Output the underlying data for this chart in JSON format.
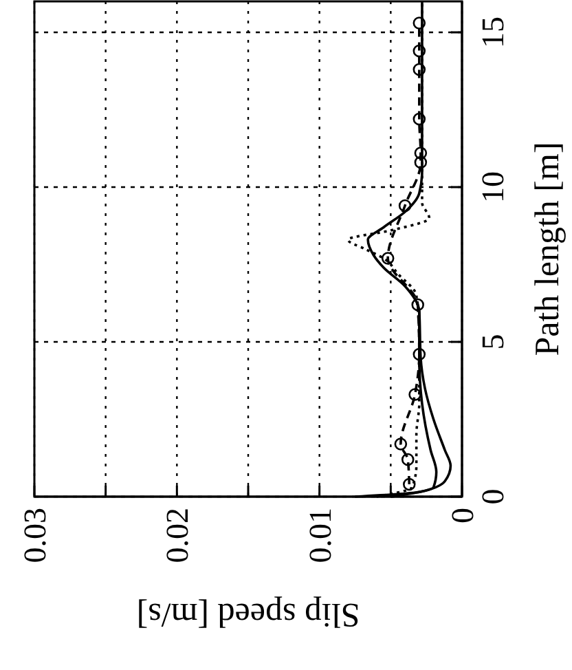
{
  "chart_data": {
    "type": "line",
    "xlabel": "Slip speed [m/s]",
    "ylabel": "Path length [m]",
    "xlim": [
      0.03,
      0
    ],
    "xticks": [
      0.03,
      {
        "value": 0.025,
        "label": null
      },
      0.02,
      {
        "value": 0.015,
        "label": null
      },
      0.01,
      {
        "value": 0.005,
        "label": null
      },
      0
    ],
    "ylim": [
      0,
      16
    ],
    "yticks": [
      0,
      5,
      10,
      15
    ],
    "grid": true,
    "series": [
      {
        "color": "#000000",
        "line_style": "solid",
        "marker": "none",
        "x": [
          0.0075,
          0.003,
          0.0012,
          0.0008,
          0.0012,
          0.002,
          0.0026,
          0.0029,
          0.003,
          0.004,
          0.0055,
          0.0062,
          0.0066,
          0.0055,
          0.004,
          0.003,
          0.0028,
          0.0028
        ],
        "values": [
          0,
          0.15,
          0.5,
          1.0,
          1.5,
          2.5,
          3.5,
          4.5,
          6,
          6.8,
          7.4,
          7.8,
          8.3,
          8.7,
          9.2,
          9.8,
          10.5,
          16
        ]
      },
      {
        "color": "#000000",
        "line_style": "solid",
        "marker": "none",
        "x": [
          0.005,
          0.002,
          0.0018,
          0.0022,
          0.0028,
          0.003,
          0.003
        ],
        "values": [
          0,
          0.3,
          0.8,
          1.5,
          3,
          4.5,
          6
        ]
      },
      {
        "color": "#000000",
        "line_style": "dotted",
        "marker": "none",
        "x": [
          0.006,
          0.0035,
          0.0032,
          0.0032,
          0.003,
          0.003,
          0.0032,
          0.0045,
          0.0055,
          0.0068,
          0.008,
          0.005,
          0.0023,
          0.0028,
          0.0028,
          0.0028
        ],
        "values": [
          0,
          0.3,
          1,
          2,
          3,
          5,
          6.5,
          7.2,
          7.7,
          8.0,
          8.3,
          8.6,
          9.0,
          9.5,
          10,
          16
        ]
      },
      {
        "color": "#000000",
        "line_style": "dashed",
        "marker": "circle",
        "x": [
          0.0037,
          0.0038,
          0.0043,
          0.0033,
          0.003,
          0.0031,
          0.0052,
          0.004,
          0.0029,
          0.0029,
          0.003,
          0.003,
          0.003,
          0.003
        ],
        "values": [
          0.4,
          1.2,
          1.7,
          3.3,
          4.6,
          6.2,
          7.7,
          9.4,
          10.8,
          11.1,
          12.2,
          13.8,
          14.4,
          15.3
        ]
      }
    ]
  }
}
